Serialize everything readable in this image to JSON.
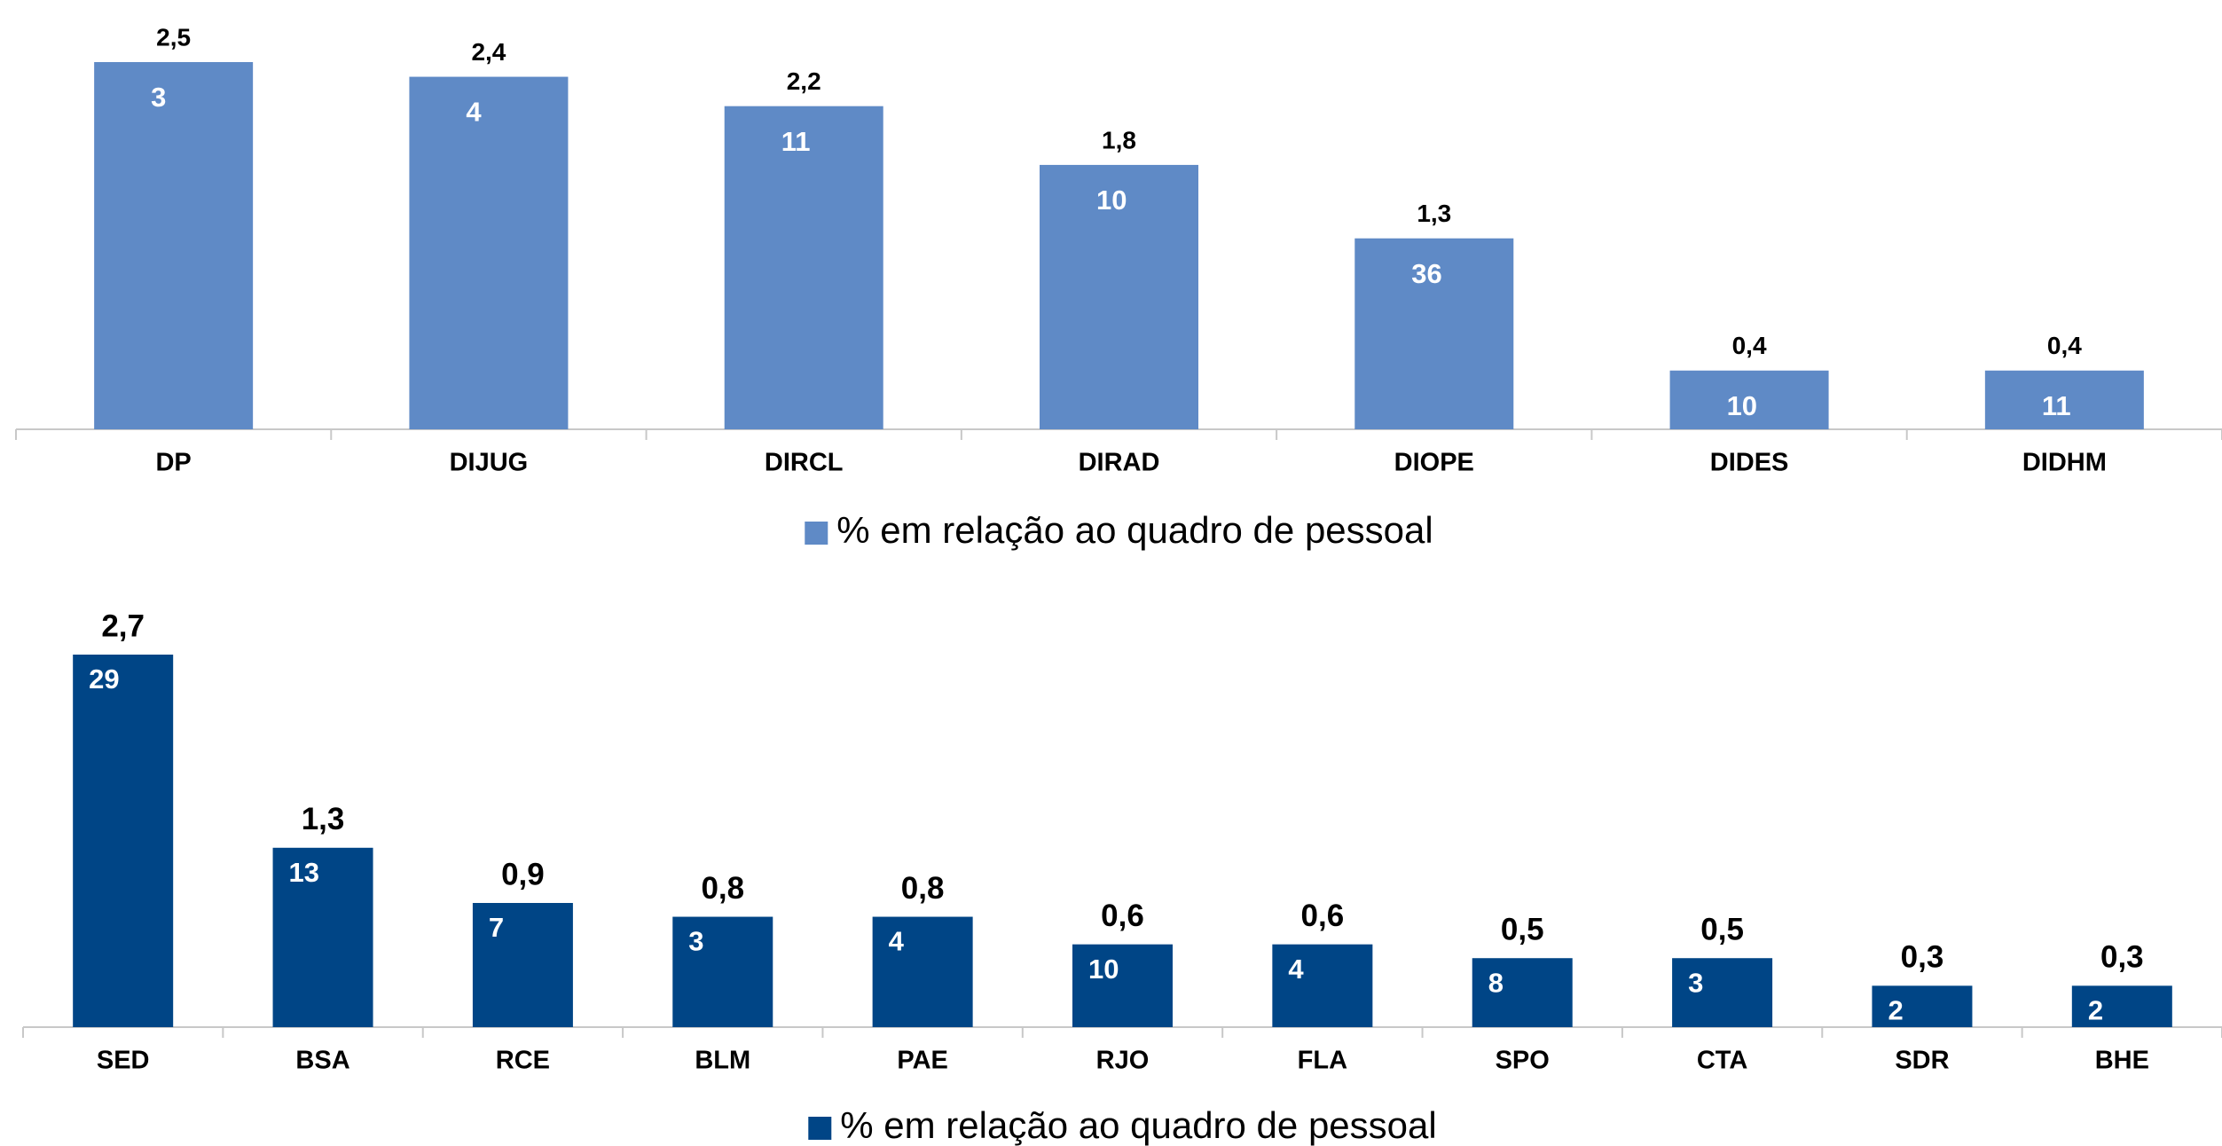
{
  "chart_data": [
    {
      "type": "bar",
      "categories": [
        "DP",
        "DIJUG",
        "DIRCL",
        "DIRAD",
        "DIOPE",
        "DIDES",
        "DIDHM"
      ],
      "series": [
        {
          "name": "% em relação ao quadro de pessoal",
          "color": "#5f8ac6",
          "values": [
            2.5,
            2.4,
            2.2,
            1.8,
            1.3,
            0.4,
            0.4
          ],
          "value_labels": [
            "2,5",
            "2,4",
            "2,2",
            "1,8",
            "1,3",
            "0,4",
            "0,4"
          ],
          "counts": [
            3,
            4,
            11,
            10,
            36,
            10,
            11
          ]
        }
      ],
      "legend": "bottom"
    },
    {
      "type": "bar",
      "categories": [
        "SED",
        "BSA",
        "RCE",
        "BLM",
        "PAE",
        "RJO",
        "FLA",
        "SPO",
        "CTA",
        "SDR",
        "BHE"
      ],
      "series": [
        {
          "name": "% em relação ao quadro de pessoal",
          "color": "#004586",
          "values": [
            2.7,
            1.3,
            0.9,
            0.8,
            0.8,
            0.6,
            0.6,
            0.5,
            0.5,
            0.3,
            0.3
          ],
          "value_labels": [
            "2,7",
            "1,3",
            "0,9",
            "0,8",
            "0,8",
            "0,6",
            "0,6",
            "0,5",
            "0,5",
            "0,3",
            "0,3"
          ],
          "counts": [
            29,
            13,
            7,
            3,
            4,
            10,
            4,
            8,
            3,
            2,
            2
          ]
        }
      ],
      "legend": "bottom"
    }
  ]
}
